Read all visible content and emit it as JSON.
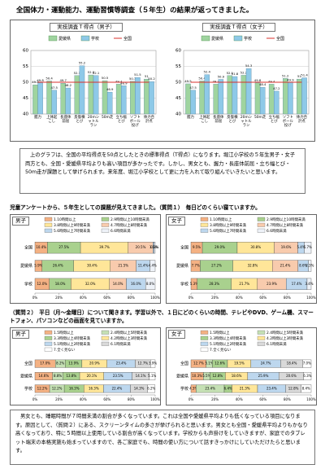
{
  "title": "全国体力・運動能力、運動習慣等調査（５年生）の結果が返ってきました。",
  "paragraphs": [
    "上のグラフは、全国の平均得点を50点としたときの標準得点（T得点）になります。堀江小学校の５年生男子・女子両方とも、全国・愛媛県平均よりも高い項目が多かったです。しかし、男女とも、握力・長座体前屈・立ち幅とび・50m走が課題として挙げられます。来年度、堀江小学校として更に力を入れて取り組んでいきたいと思います。",
    "男女とも、睡眠時間が７時間未満の割合が多くなっています。これは全国や愛媛県平均よりも低くなっている項目になります。原因として、（質問２）にある、スクリーンタイムの多さが挙げられると思います。男女とも全国・愛媛県平均よりもかなり高くなっており、特に５時間以上使用している割合が高くなっています。学校からも声掛けをしていきますが、家庭でのタブレット端末の本格実施も始まっていますので、各ご家庭でも、時間の使い方について話すきっかけにしていただけたらと思います。"
  ],
  "headings": [
    "児童アンケートから、５年生としての課題が見えてきました。（質問１）　毎日どのくらい寝ていますか。",
    "（質問２）　平日（月～金曜日）について聞きます。学習以外で、１日にどのくらいの時間、テレビやDVD、ゲーム機、スマートフォン、パソコンなどの画面を見ていますか。"
  ],
  "chart_data": [
    {
      "type": "bar",
      "title": "実技調査Ｔ得点（男子）",
      "categories": [
        "握力",
        "上体起こし",
        "長座体前屈",
        "反復横とび",
        "20mシャトルラン",
        "50m走",
        "立ち幅とび",
        "ソフトボール投げ",
        "体力合計点"
      ],
      "series": [
        {
          "name": "愛媛県",
          "color": "#9fd49f",
          "values": [
            49.2,
            50.4,
            49.7,
            52.1,
            52.3,
            50.5,
            49.4,
            50.3,
            51.0
          ]
        },
        {
          "name": "学校",
          "color": "#8ec9e8",
          "values": [
            49.8,
            47.5,
            48.2,
            55.2,
            52.1,
            46.9,
            48.9,
            51.5,
            50.2
          ]
        },
        {
          "name": "全国",
          "color": "#d9302c",
          "type": "line",
          "values": [
            50,
            50,
            50,
            50,
            50,
            50,
            50,
            50,
            50
          ]
        }
      ],
      "ylim": [
        40,
        60
      ],
      "yticks": [
        40,
        45,
        50,
        55,
        60
      ],
      "grid": true
    },
    {
      "type": "bar",
      "title": "実技調査Ｔ得点（女子）",
      "categories": [
        "握力",
        "上体起こし",
        "長座体前屈",
        "反復横とび",
        "20mシャトルラン",
        "50m走",
        "立ち幅とび",
        "ソフトボール投げ",
        "体力合計点"
      ],
      "series": [
        {
          "name": "愛媛県",
          "color": "#9fd49f",
          "values": [
            49.5,
            50.4,
            49.4,
            52.1,
            52.2,
            49.8,
            49.4,
            51.2,
            51.0
          ]
        },
        {
          "name": "学校",
          "color": "#8ec9e8",
          "values": [
            47.5,
            52.4,
            50.9,
            51.8,
            54.3,
            48.4,
            47.2,
            49.9,
            51.4
          ]
        },
        {
          "name": "全国",
          "color": "#d9302c",
          "type": "line",
          "values": [
            50,
            50,
            50,
            50,
            50,
            50,
            50,
            50,
            50
          ]
        }
      ],
      "ylim": [
        40,
        60
      ],
      "yticks": [
        40,
        45,
        50,
        55,
        60
      ],
      "grid": true
    },
    {
      "type": "stacked_hbar",
      "title": "男子",
      "categories": [
        "全国",
        "愛媛県",
        "学校"
      ],
      "series": [
        {
          "name": "1.10時間以上",
          "color": "#f4b183",
          "values": [
            10.4,
            5.9,
            12.0
          ],
          "value_labels": [
            "10.4%",
            "5.9%",
            "12.0%"
          ]
        },
        {
          "name": "2.9時間以上10時間未満",
          "color": "#a9d18e",
          "values": [
            27.5,
            26.4,
            18.0
          ],
          "value_labels": [
            "27.5%",
            "26.4%",
            "18.0%"
          ]
        },
        {
          "name": "3.8時間以上9時間未満",
          "color": "#ffe699",
          "values": [
            39.7,
            30.4,
            32.0
          ],
          "value_labels": [
            "39.7%",
            "30.4%",
            "32.0%"
          ]
        },
        {
          "name": "4.7時間以上8時間未満",
          "color": "#f8cbad",
          "values": [
            20.5,
            21.5,
            14.0
          ],
          "value_labels": [
            "20.5%",
            "21.5%",
            "14.0%"
          ]
        },
        {
          "name": "5.6時間以上7時間未満",
          "color": "#bdd7ee",
          "values": [
            1.1,
            11.4,
            16.0
          ],
          "value_labels": [
            "1.1%",
            "11.4%",
            "16.0%"
          ]
        },
        {
          "name": "6.6時間未満",
          "color": "#eef2f8",
          "values": [
            0.8,
            4.4,
            8.0
          ],
          "value_labels": [
            "0.8%",
            "4.4%",
            "8.0%"
          ]
        }
      ],
      "xlim": [
        0,
        100
      ],
      "xticks": [
        {
          "value": 0,
          "label": "0%"
        },
        {
          "value": 20,
          "label": "20%"
        },
        {
          "value": 40,
          "label": "40%"
        },
        {
          "value": 60,
          "label": "60%"
        },
        {
          "value": 80,
          "label": "80%"
        },
        {
          "value": 100,
          "label": "100%"
        }
      ]
    },
    {
      "type": "stacked_hbar",
      "title": "女子",
      "categories": [
        "全国",
        "愛媛県",
        "学校"
      ],
      "series": [
        {
          "name": "1.10時間以上",
          "color": "#f4b183",
          "values": [
            9.5,
            7.7,
            5.3
          ],
          "value_labels": [
            "9.5%",
            "7.7%",
            "5.3%"
          ]
        },
        {
          "name": "2.9時間以上10時間未満",
          "color": "#a9d18e",
          "values": [
            29.0,
            27.2,
            28.3
          ],
          "value_labels": [
            "29.0%",
            "27.2%",
            "28.3%"
          ]
        },
        {
          "name": "3.8時間以上9時間未満",
          "color": "#ffe699",
          "values": [
            30.8,
            32.8,
            21.7
          ],
          "value_labels": [
            "30.8%",
            "32.8%",
            "21.7%"
          ]
        },
        {
          "name": "4.7時間以上8時間未満",
          "color": "#f8cbad",
          "values": [
            19.6,
            21.4,
            23.9
          ],
          "value_labels": [
            "19.6%",
            "21.4%",
            "23.9%"
          ]
        },
        {
          "name": "5.6時間以上7時間未満",
          "color": "#bdd7ee",
          "values": [
            5.4,
            8.6,
            17.4
          ],
          "value_labels": [
            "5.4%",
            "8.6%",
            "17.4%"
          ]
        },
        {
          "name": "6.6時間未満",
          "color": "#eef2f8",
          "values": [
            5.7,
            2.3,
            3.4
          ],
          "value_labels": [
            "5.7%",
            "2.3%",
            "3.4%"
          ]
        }
      ],
      "xlim": [
        0,
        100
      ],
      "xticks": [
        {
          "value": 0,
          "label": "0%"
        },
        {
          "value": 20,
          "label": "20%"
        },
        {
          "value": 40,
          "label": "40%"
        },
        {
          "value": 60,
          "label": "60%"
        },
        {
          "value": 80,
          "label": "80%"
        },
        {
          "value": 100,
          "label": "100%"
        }
      ]
    },
    {
      "type": "stacked_hbar",
      "title": "男子",
      "categories": [
        "全国",
        "愛媛県",
        "学校"
      ],
      "series": [
        {
          "name": "1.5時間以上",
          "color": "#f4b183",
          "values": [
            17.0,
            14.6,
            12.2
          ],
          "value_labels": [
            "17.0%",
            "14.6%",
            "12.2%"
          ]
        },
        {
          "name": "2.4時間以上5時間未満",
          "color": "#c5e0b4",
          "values": [
            8.2,
            8.8,
            12.2
          ],
          "value_labels": [
            "8.2%",
            "8.8%",
            "12.2%"
          ]
        },
        {
          "name": "3.3時間以上4時間未満",
          "color": "#a9d18e",
          "values": [
            13.9,
            13.8,
            16.3
          ],
          "value_labels": [
            "13.9%",
            "13.8%",
            "16.3%"
          ]
        },
        {
          "name": "4.2時間以上3時間未満",
          "color": "#ffe699",
          "values": [
            20.9,
            20.1,
            16.3
          ],
          "value_labels": [
            "20.9%",
            "20.1%",
            "16.3%"
          ]
        },
        {
          "name": "5.1時間以上2時間未満",
          "color": "#bdd7ee",
          "values": [
            23.4,
            23.5,
            22.4
          ],
          "value_labels": [
            "23.4%",
            "23.5%",
            "22.4%"
          ]
        },
        {
          "name": "6.1時間未満",
          "color": "#d9d9d9",
          "values": [
            12.7,
            14.1,
            14.3
          ],
          "value_labels": [
            "12.7%",
            "14.1%",
            "14.3%"
          ]
        },
        {
          "name": "7.全く見ない",
          "color": "#ffffff",
          "values": [
            3.9,
            5.1,
            6.2
          ],
          "value_labels": [
            "3.9%",
            "5.1%",
            "6.2%"
          ]
        }
      ],
      "xlim": [
        0,
        100
      ],
      "xticks": [
        {
          "value": 0,
          "label": "0%"
        },
        {
          "value": 20,
          "label": "20%"
        },
        {
          "value": 40,
          "label": "40%"
        },
        {
          "value": 60,
          "label": "60%"
        },
        {
          "value": 80,
          "label": "80%"
        },
        {
          "value": 100,
          "label": "100%"
        }
      ]
    },
    {
      "type": "stacked_hbar",
      "title": "女子",
      "categories": [
        "全国",
        "愛媛県",
        "学校"
      ],
      "series": [
        {
          "name": "1.5時間以上",
          "color": "#f4b183",
          "values": [
            12.7,
            10.3,
            4.3
          ],
          "value_labels": [
            "12.7%",
            "10.3%",
            "4.3%"
          ]
        },
        {
          "name": "2.4時間以上5時間未満",
          "color": "#c5e0b4",
          "values": [
            5.1,
            5.5,
            23.4
          ],
          "value_labels": [
            "5.1%",
            "5.5%",
            "23.4%"
          ]
        },
        {
          "name": "3.3時間以上4時間未満",
          "color": "#a9d18e",
          "values": [
            12.6,
            12.8,
            6.4
          ],
          "value_labels": [
            "12.6%",
            "12.8%",
            "6.4%"
          ]
        },
        {
          "name": "4.2時間以上3時間未満",
          "color": "#ffe699",
          "values": [
            19.5,
            18.6,
            21.3
          ],
          "value_labels": [
            "19.5%",
            "18.6%",
            "21.3%"
          ]
        },
        {
          "name": "5.1時間以上2時間未満",
          "color": "#bdd7ee",
          "values": [
            24.7,
            25.9,
            23.4
          ],
          "value_labels": [
            "24.7%",
            "25.9%",
            "23.4%"
          ]
        },
        {
          "name": "6.1時間未満",
          "color": "#d9d9d9",
          "values": [
            18.4,
            20.6,
            12.8
          ],
          "value_labels": [
            "18.4%",
            "20.6%",
            "12.8%"
          ]
        },
        {
          "name": "7.全く見ない",
          "color": "#ffffff",
          "values": [
            7.0,
            6.3,
            8.4
          ],
          "value_labels": [
            "7.0%",
            "6.3%",
            "8.4%"
          ]
        }
      ],
      "xlim": [
        0,
        100
      ],
      "xticks": [
        {
          "value": 0,
          "label": "0%"
        },
        {
          "value": 20,
          "label": "20%"
        },
        {
          "value": 40,
          "label": "40%"
        },
        {
          "value": 60,
          "label": "60%"
        },
        {
          "value": 80,
          "label": "80%"
        },
        {
          "value": 100,
          "label": "100%"
        }
      ]
    }
  ]
}
